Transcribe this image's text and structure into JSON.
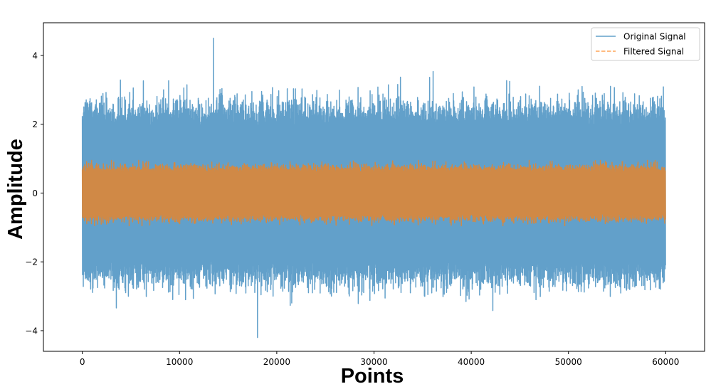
{
  "chart_data": {
    "type": "line",
    "title": "",
    "xlabel": "Points",
    "ylabel": "Amplitude",
    "xlim": [
      -4000,
      64000
    ],
    "ylim": [
      -4.6,
      4.95
    ],
    "xticks": [
      0,
      10000,
      20000,
      30000,
      40000,
      50000,
      60000
    ],
    "xtick_labels": [
      "0",
      "10000",
      "20000",
      "30000",
      "40000",
      "50000",
      "60000"
    ],
    "yticks": [
      -4,
      -2,
      0,
      2,
      4
    ],
    "ytick_labels": [
      "−4",
      "−2",
      "0",
      "2",
      "4"
    ],
    "grid": false,
    "legend": "top-right",
    "n_points": 60000,
    "series": [
      {
        "name": "Original Signal",
        "color": "#1f77b4",
        "alpha": 0.7,
        "linestyle": "solid",
        "typical_range": [
          -2.0,
          2.0
        ],
        "max": 4.5,
        "min": -4.2,
        "peaks": [
          {
            "x": 13500,
            "y": 4.5
          },
          {
            "x": 18000,
            "y": -4.2
          }
        ]
      },
      {
        "name": "Filtered Signal",
        "color": "#ff7f0e",
        "alpha": 0.7,
        "linestyle": "dashed",
        "typical_range": [
          -0.6,
          0.6
        ],
        "max": 0.95,
        "min": -0.95
      }
    ]
  }
}
